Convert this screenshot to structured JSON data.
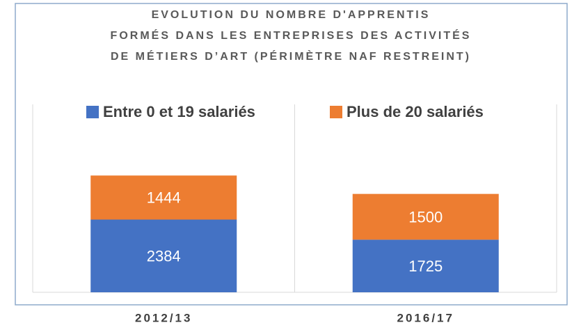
{
  "chart_data": {
    "type": "stacked_bar",
    "title": [
      "EVOLUTION DU NOMBRE D'APPRENTIS",
      "FORMÉS DANS LES ENTREPRISES DES ACTIVITÉS",
      "DE MÉTIERS D’ART (PÉRIMÈTRE NAF RESTREINT)"
    ],
    "categories": [
      "2012/13",
      "2016/17"
    ],
    "series": [
      {
        "name": "Entre 0 et 19 salariés",
        "color": "#4472c4",
        "values": [
          2384,
          1725
        ]
      },
      {
        "name": "Plus de 20 salariés",
        "color": "#ed7d31",
        "values": [
          1444,
          1500
        ]
      }
    ],
    "ylim": [
      0,
      6000
    ],
    "legend": "top"
  }
}
